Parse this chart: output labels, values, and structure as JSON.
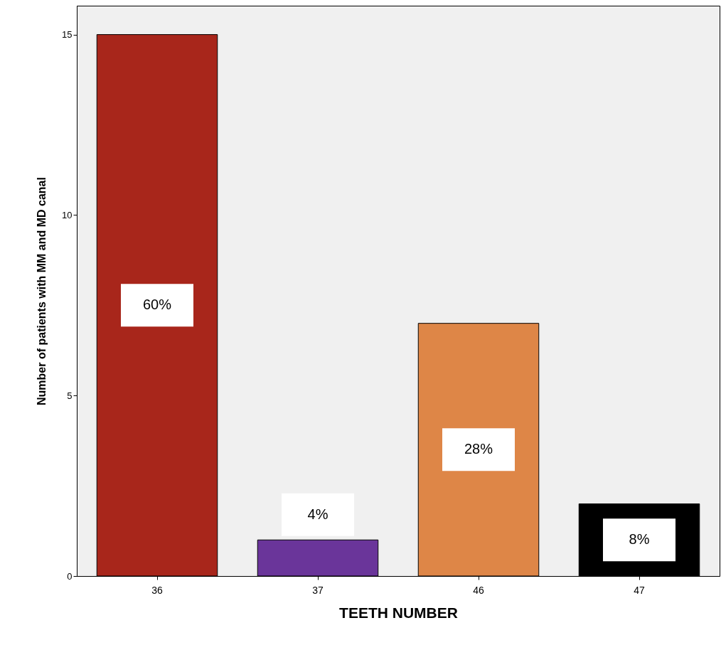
{
  "chart_data": {
    "type": "bar",
    "xlabel": "TEETH NUMBER",
    "ylabel": "Number of patients with MM and MD canal",
    "categories": [
      "36",
      "37",
      "46",
      "47"
    ],
    "values": [
      15,
      1,
      7,
      2
    ],
    "colors": [
      "#a8261b",
      "#6a359a",
      "#de8647",
      "#000000"
    ],
    "annotations": [
      "60%",
      "4%",
      "28%",
      "8%"
    ],
    "ylim": [
      0,
      15.8
    ],
    "yticks": [
      0,
      5,
      10,
      15
    ],
    "grid": false
  }
}
